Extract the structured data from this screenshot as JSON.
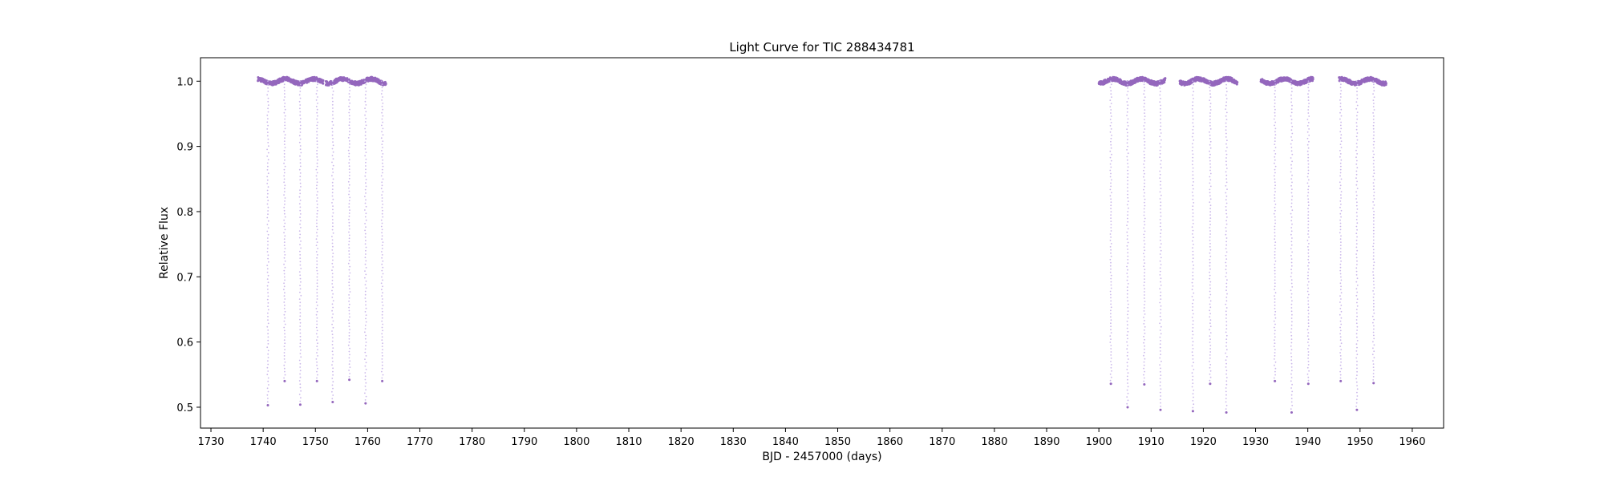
{
  "chart_data": {
    "type": "scatter",
    "title": "Light Curve for TIC 288434781",
    "xlabel": "BJD - 2457000 (days)",
    "ylabel": "Relative Flux",
    "xlim": [
      1728,
      1966
    ],
    "ylim": [
      0.468,
      1.036
    ],
    "xticks": [
      1730,
      1740,
      1750,
      1760,
      1770,
      1780,
      1790,
      1800,
      1810,
      1820,
      1830,
      1840,
      1850,
      1860,
      1870,
      1880,
      1890,
      1900,
      1910,
      1920,
      1930,
      1940,
      1950,
      1960
    ],
    "yticks": [
      0.5,
      0.6,
      0.7,
      0.8,
      0.9,
      1.0
    ],
    "ytick_labels": [
      "0.5",
      "0.6",
      "0.7",
      "0.8",
      "0.9",
      "1.0"
    ],
    "grid": false,
    "legend": "none",
    "colors": {
      "points": "#9467bd",
      "dip_points": "#c5b0e8",
      "axes": "#000000"
    },
    "baseline_segments": [
      {
        "start": 1739.0,
        "end": 1751.5
      },
      {
        "start": 1752.0,
        "end": 1763.5
      },
      {
        "start": 1900.0,
        "end": 1912.7
      },
      {
        "start": 1915.5,
        "end": 1926.5
      },
      {
        "start": 1931.0,
        "end": 1941.0
      },
      {
        "start": 1946.0,
        "end": 1955.0
      }
    ],
    "eclipses": [
      {
        "x": 1740.9,
        "min_flux": 0.503
      },
      {
        "x": 1744.1,
        "min_flux": 0.54
      },
      {
        "x": 1747.1,
        "min_flux": 0.504
      },
      {
        "x": 1750.3,
        "min_flux": 0.54
      },
      {
        "x": 1753.3,
        "min_flux": 0.508
      },
      {
        "x": 1756.5,
        "min_flux": 0.542
      },
      {
        "x": 1759.6,
        "min_flux": 0.506
      },
      {
        "x": 1762.8,
        "min_flux": 0.54
      },
      {
        "x": 1902.3,
        "min_flux": 0.536
      },
      {
        "x": 1905.5,
        "min_flux": 0.5
      },
      {
        "x": 1908.7,
        "min_flux": 0.535
      },
      {
        "x": 1911.8,
        "min_flux": 0.496
      },
      {
        "x": 1918.0,
        "min_flux": 0.494
      },
      {
        "x": 1921.3,
        "min_flux": 0.536
      },
      {
        "x": 1924.4,
        "min_flux": 0.492
      },
      {
        "x": 1933.7,
        "min_flux": 0.54
      },
      {
        "x": 1936.9,
        "min_flux": 0.492
      },
      {
        "x": 1940.1,
        "min_flux": 0.536
      },
      {
        "x": 1946.3,
        "min_flux": 0.54
      },
      {
        "x": 1949.4,
        "min_flux": 0.496
      },
      {
        "x": 1952.6,
        "min_flux": 0.537
      }
    ]
  }
}
